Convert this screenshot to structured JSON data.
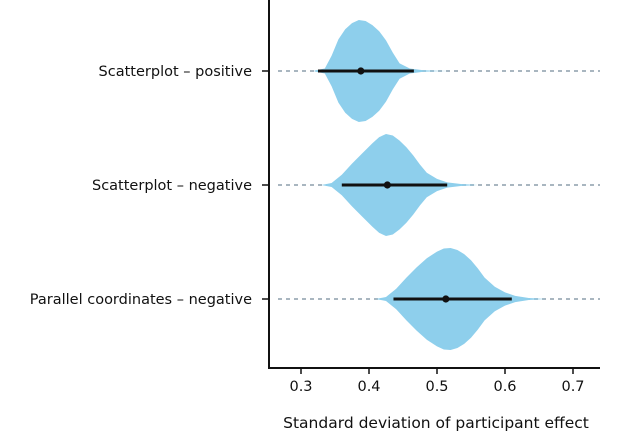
{
  "chart_data": {
    "type": "violin",
    "xlabel": "Standard deviation of participant effect",
    "xlim": [
      0.25,
      0.74
    ],
    "xticks": [
      0.3,
      0.4,
      0.5,
      0.6,
      0.7
    ],
    "xtick_labels": [
      "0.3",
      "0.4",
      "0.5",
      "0.6",
      "0.7"
    ],
    "grid": false,
    "colors": {
      "violin": "#8ecfec",
      "interval": "#111111",
      "guide": "#a9b6c0",
      "axis": "#111111"
    },
    "series": [
      {
        "name": "Scatterplot – positive",
        "point": 0.388,
        "interval": [
          0.325,
          0.466
        ],
        "density": [
          [
            0.32,
            0.01
          ],
          [
            0.335,
            0.05
          ],
          [
            0.345,
            0.3
          ],
          [
            0.355,
            0.62
          ],
          [
            0.365,
            0.82
          ],
          [
            0.375,
            0.94
          ],
          [
            0.385,
            1.0
          ],
          [
            0.395,
            0.98
          ],
          [
            0.405,
            0.9
          ],
          [
            0.415,
            0.78
          ],
          [
            0.425,
            0.6
          ],
          [
            0.435,
            0.36
          ],
          [
            0.445,
            0.15
          ],
          [
            0.46,
            0.05
          ],
          [
            0.48,
            0.015
          ],
          [
            0.5,
            0.004
          ],
          [
            0.52,
            0.0
          ]
        ]
      },
      {
        "name": "Scatterplot – negative",
        "point": 0.427,
        "interval": [
          0.36,
          0.515
        ],
        "density": [
          [
            0.33,
            0.0
          ],
          [
            0.345,
            0.04
          ],
          [
            0.36,
            0.2
          ],
          [
            0.375,
            0.42
          ],
          [
            0.39,
            0.62
          ],
          [
            0.405,
            0.82
          ],
          [
            0.415,
            0.94
          ],
          [
            0.425,
            1.0
          ],
          [
            0.435,
            0.97
          ],
          [
            0.445,
            0.87
          ],
          [
            0.455,
            0.74
          ],
          [
            0.465,
            0.58
          ],
          [
            0.475,
            0.4
          ],
          [
            0.485,
            0.24
          ],
          [
            0.5,
            0.12
          ],
          [
            0.515,
            0.05
          ],
          [
            0.535,
            0.02
          ],
          [
            0.56,
            0.0
          ]
        ]
      },
      {
        "name": "Parallel coordinates – negative",
        "point": 0.513,
        "interval": [
          0.436,
          0.61
        ],
        "density": [
          [
            0.41,
            0.0
          ],
          [
            0.425,
            0.04
          ],
          [
            0.44,
            0.2
          ],
          [
            0.455,
            0.42
          ],
          [
            0.47,
            0.62
          ],
          [
            0.485,
            0.8
          ],
          [
            0.5,
            0.93
          ],
          [
            0.51,
            0.99
          ],
          [
            0.52,
            1.0
          ],
          [
            0.53,
            0.96
          ],
          [
            0.54,
            0.88
          ],
          [
            0.55,
            0.76
          ],
          [
            0.56,
            0.6
          ],
          [
            0.57,
            0.42
          ],
          [
            0.585,
            0.24
          ],
          [
            0.6,
            0.13
          ],
          [
            0.615,
            0.06
          ],
          [
            0.635,
            0.02
          ],
          [
            0.66,
            0.0
          ]
        ]
      }
    ]
  }
}
